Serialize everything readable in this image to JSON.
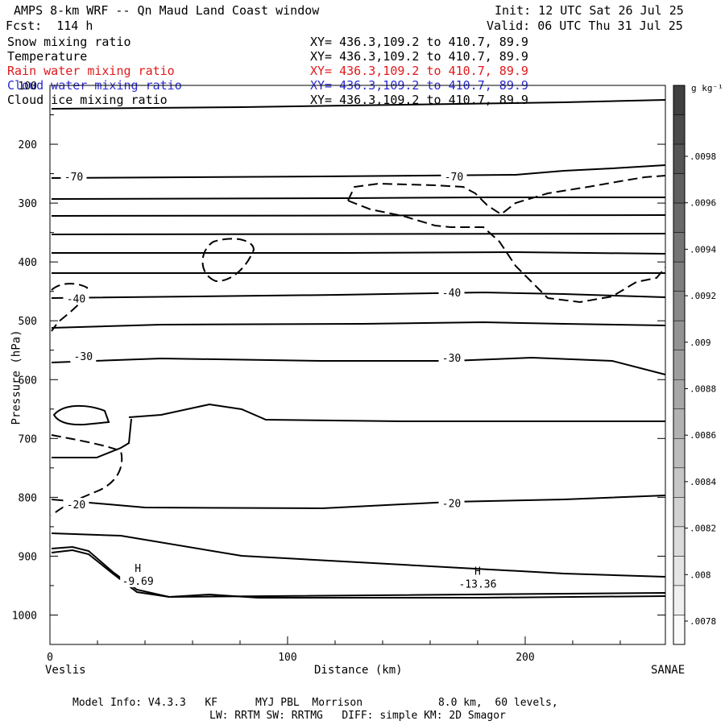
{
  "header": {
    "title": "AMPS 8-km WRF -- Qn Maud Land Coast window",
    "forecast": "Fcst:  114 h",
    "init": "Init: 12 UTC Sat 26 Jul 25",
    "valid": "Valid: 06 UTC Thu 31 Jul 25"
  },
  "fields": [
    {
      "name": "Snow mixing ratio",
      "xy": "XY= 436.3,109.2 to 410.7, 89.9",
      "color": "#000000"
    },
    {
      "name": "Temperature",
      "xy": "XY= 436.3,109.2 to 410.7, 89.9",
      "color": "#000000"
    },
    {
      "name": "Rain water mixing ratio",
      "xy": "XY= 436.3,109.2 to 410.7, 89.9",
      "color": "#e0191b"
    },
    {
      "name": "Cloud water mixing ratio",
      "xy": "XY= 436.3,109.2 to 410.7, 89.9",
      "color": "#2a2ad0"
    },
    {
      "name": "Cloud ice mixing ratio",
      "xy": "XY= 436.3,109.2 to 410.7, 89.9",
      "color": "#000000"
    }
  ],
  "footer": {
    "line1": "Model Info: V4.3.3   KF      MYJ PBL  Morrison            8.0 km,  60 levels,",
    "line2": "LW: RRTM SW: RRTMG   DIFF: simple KM: 2D Smagor"
  },
  "chart_data": {
    "type": "contour",
    "xlabel": "Distance (km)",
    "ylabel": "Pressure (hPa)",
    "xlim": [
      0,
      259
    ],
    "ylim": [
      1050,
      100
    ],
    "x_ticks": [
      0,
      100,
      200
    ],
    "y_ticks": [
      100,
      200,
      300,
      400,
      500,
      600,
      700,
      800,
      900,
      1000
    ],
    "x_endpoints": {
      "left": "Veslis",
      "right": "SANAE"
    },
    "colorbar": {
      "units": "g kg⁻¹",
      "ticks": [
        ".0078",
        ".008",
        ".0082",
        ".0084",
        ".0086",
        ".0088",
        ".009",
        ".0092",
        ".0094",
        ".0096",
        ".0098"
      ]
    },
    "temperature_labels": [
      {
        "text": "-70",
        "x": 10,
        "p": 255
      },
      {
        "text": "-70",
        "x": 170,
        "p": 255
      },
      {
        "text": "-40",
        "x": 11,
        "p": 462
      },
      {
        "text": "-40",
        "x": 169,
        "p": 452
      },
      {
        "text": "-30",
        "x": 14,
        "p": 560
      },
      {
        "text": "-30",
        "x": 169,
        "p": 563
      },
      {
        "text": "-20",
        "x": 11,
        "p": 812
      },
      {
        "text": "-20",
        "x": 169,
        "p": 810
      }
    ],
    "highs": [
      {
        "mark": "H",
        "value": "-9.69",
        "x": 37,
        "p": 935
      },
      {
        "mark": "H",
        "value": "-13.36",
        "x": 180,
        "p": 940
      }
    ]
  }
}
